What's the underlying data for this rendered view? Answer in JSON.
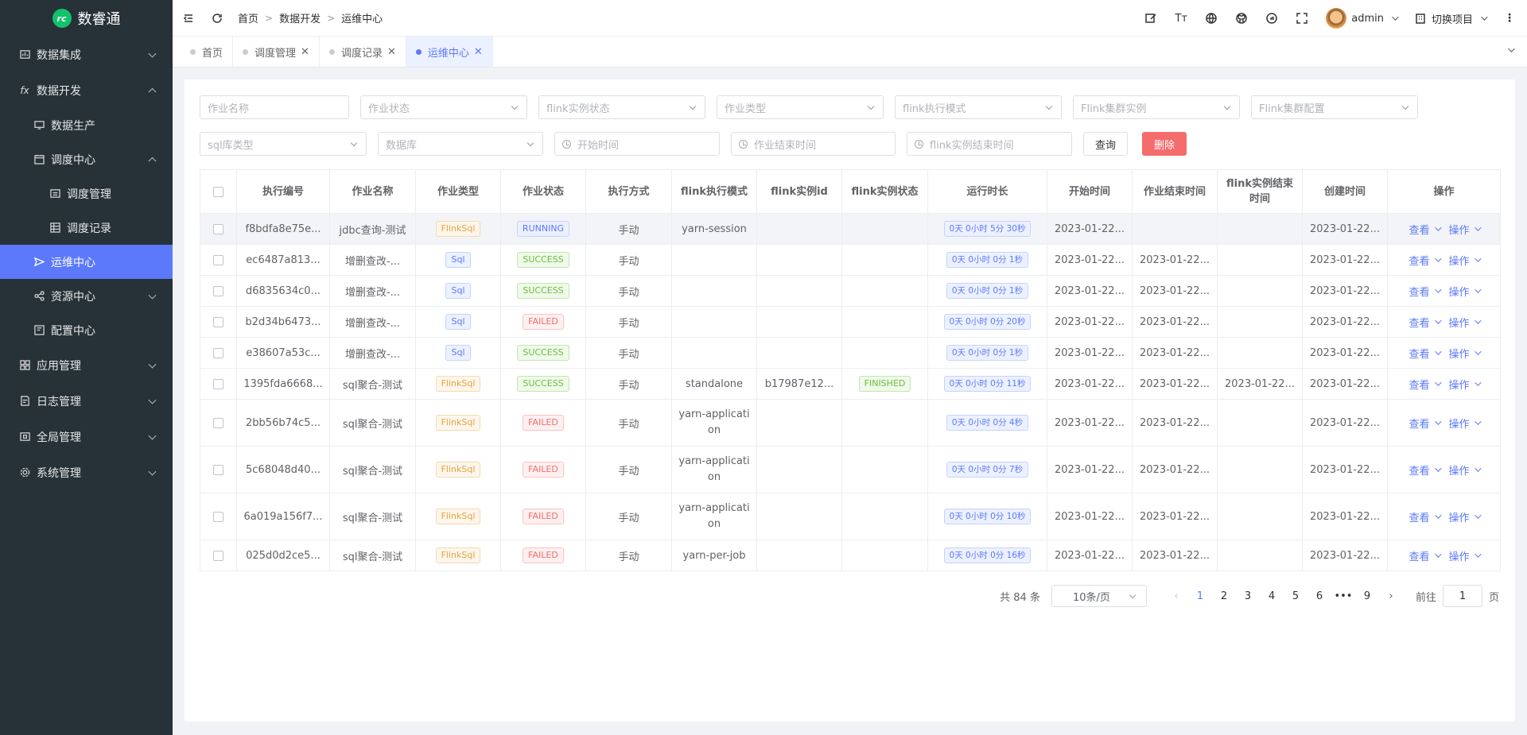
{
  "app": {
    "logo_mark": "rc",
    "title": "数睿通"
  },
  "sidebar": {
    "items": [
      {
        "label": "数据集成",
        "icon": "integration-icon"
      },
      {
        "label": "数据开发",
        "icon": "function-icon"
      },
      {
        "label": "数据生产",
        "icon": "monitor-icon"
      },
      {
        "label": "调度中心",
        "icon": "calendar-icon"
      },
      {
        "label": "调度管理",
        "icon": "calendar-grid-icon"
      },
      {
        "label": "调度记录",
        "icon": "table-icon"
      },
      {
        "label": "运维中心",
        "icon": "send-icon"
      },
      {
        "label": "资源中心",
        "icon": "share-icon"
      },
      {
        "label": "配置中心",
        "icon": "config-icon"
      },
      {
        "label": "应用管理",
        "icon": "apps-icon"
      },
      {
        "label": "日志管理",
        "icon": "log-icon"
      },
      {
        "label": "全局管理",
        "icon": "global-icon"
      },
      {
        "label": "系统管理",
        "icon": "settings-icon"
      }
    ]
  },
  "header": {
    "breadcrumb": [
      "首页",
      "数据开发",
      "运维中心"
    ],
    "user": "admin",
    "switch_project": "切换项目"
  },
  "tabs": [
    {
      "label": "首页"
    },
    {
      "label": "调度管理"
    },
    {
      "label": "调度记录"
    },
    {
      "label": "运维中心"
    }
  ],
  "filters": {
    "job_name": "作业名称",
    "job_status": "作业状态",
    "flink_instance_status": "flink实例状态",
    "job_type": "作业类型",
    "flink_exec_mode": "flink执行模式",
    "flink_cluster_instance": "Flink集群实例",
    "flink_cluster_config": "Flink集群配置",
    "sql_db_type": "sql库类型",
    "database": "数据库",
    "start_time": "开始时间",
    "job_end_time": "作业结束时间",
    "flink_instance_end_time": "flink实例结束时间",
    "query": "查询",
    "delete": "删除"
  },
  "table": {
    "headers": [
      "执行编号",
      "作业名称",
      "作业类型",
      "作业状态",
      "执行方式",
      "flink执行模式",
      "flink实例id",
      "flink实例状态",
      "运行时长",
      "开始时间",
      "作业结束时间",
      "flink实例结束时间",
      "创建时间",
      "操作"
    ],
    "view_label": "查看",
    "ops_label": "操作",
    "rows": [
      {
        "id": "f8bdfa8e75e...",
        "name": "jdbc查询-测试",
        "type": "FlinkSql",
        "status": "RUNNING",
        "mode": "手动",
        "flink_mode": "yarn-session",
        "flink_id": "",
        "flink_status": "",
        "duration": "0天 0小时 5分 30秒",
        "start": "2023-01-22...",
        "end": "",
        "flink_end": "",
        "created": "2023-01-22..."
      },
      {
        "id": "ec6487a813...",
        "name": "增删查改-...",
        "type": "Sql",
        "status": "SUCCESS",
        "mode": "手动",
        "flink_mode": "",
        "flink_id": "",
        "flink_status": "",
        "duration": "0天 0小时 0分 1秒",
        "start": "2023-01-22...",
        "end": "2023-01-22...",
        "flink_end": "",
        "created": "2023-01-22..."
      },
      {
        "id": "d6835634c0...",
        "name": "增删查改-...",
        "type": "Sql",
        "status": "SUCCESS",
        "mode": "手动",
        "flink_mode": "",
        "flink_id": "",
        "flink_status": "",
        "duration": "0天 0小时 0分 1秒",
        "start": "2023-01-22...",
        "end": "2023-01-22...",
        "flink_end": "",
        "created": "2023-01-22..."
      },
      {
        "id": "b2d34b6473...",
        "name": "增删查改-...",
        "type": "Sql",
        "status": "FAILED",
        "mode": "手动",
        "flink_mode": "",
        "flink_id": "",
        "flink_status": "",
        "duration": "0天 0小时 0分 20秒",
        "start": "2023-01-22...",
        "end": "2023-01-22...",
        "flink_end": "",
        "created": "2023-01-22..."
      },
      {
        "id": "e38607a53c...",
        "name": "增删查改-...",
        "type": "Sql",
        "status": "SUCCESS",
        "mode": "手动",
        "flink_mode": "",
        "flink_id": "",
        "flink_status": "",
        "duration": "0天 0小时 0分 1秒",
        "start": "2023-01-22...",
        "end": "2023-01-22...",
        "flink_end": "",
        "created": "2023-01-22..."
      },
      {
        "id": "1395fda6668...",
        "name": "sql聚合-测试",
        "type": "FlinkSql",
        "status": "SUCCESS",
        "mode": "手动",
        "flink_mode": "standalone",
        "flink_id": "b17987e12...",
        "flink_status": "FINISHED",
        "duration": "0天 0小时 0分 11秒",
        "start": "2023-01-22...",
        "end": "2023-01-22...",
        "flink_end": "2023-01-22...",
        "created": "2023-01-22..."
      },
      {
        "id": "2bb56b74c5...",
        "name": "sql聚合-测试",
        "type": "FlinkSql",
        "status": "FAILED",
        "mode": "手动",
        "flink_mode": "yarn-application",
        "flink_id": "",
        "flink_status": "",
        "duration": "0天 0小时 0分 4秒",
        "start": "2023-01-22...",
        "end": "2023-01-22...",
        "flink_end": "",
        "created": "2023-01-22..."
      },
      {
        "id": "5c68048d40...",
        "name": "sql聚合-测试",
        "type": "FlinkSql",
        "status": "FAILED",
        "mode": "手动",
        "flink_mode": "yarn-application",
        "flink_id": "",
        "flink_status": "",
        "duration": "0天 0小时 0分 7秒",
        "start": "2023-01-22...",
        "end": "2023-01-22...",
        "flink_end": "",
        "created": "2023-01-22..."
      },
      {
        "id": "6a019a156f7...",
        "name": "sql聚合-测试",
        "type": "FlinkSql",
        "status": "FAILED",
        "mode": "手动",
        "flink_mode": "yarn-application",
        "flink_id": "",
        "flink_status": "",
        "duration": "0天 0小时 0分 10秒",
        "start": "2023-01-22...",
        "end": "2023-01-22...",
        "flink_end": "",
        "created": "2023-01-22..."
      },
      {
        "id": "025d0d2ce5...",
        "name": "sql聚合-测试",
        "type": "FlinkSql",
        "status": "FAILED",
        "mode": "手动",
        "flink_mode": "yarn-per-job",
        "flink_id": "",
        "flink_status": "",
        "duration": "0天 0小时 0分 16秒",
        "start": "2023-01-22...",
        "end": "2023-01-22...",
        "flink_end": "",
        "created": "2023-01-22..."
      }
    ]
  },
  "pagination": {
    "total": "共 84 条",
    "page_size": "10条/页",
    "pages": [
      "1",
      "2",
      "3",
      "4",
      "5",
      "6",
      "•••",
      "9"
    ],
    "current": "1",
    "goto_label": "前往",
    "goto_value": "1",
    "page_suffix": "页"
  },
  "colors": {
    "accent": "#5b79fa",
    "sidebar_bg": "#263238",
    "danger": "#f56c6c",
    "success": "#67c23a",
    "warning": "#e6a23c"
  }
}
